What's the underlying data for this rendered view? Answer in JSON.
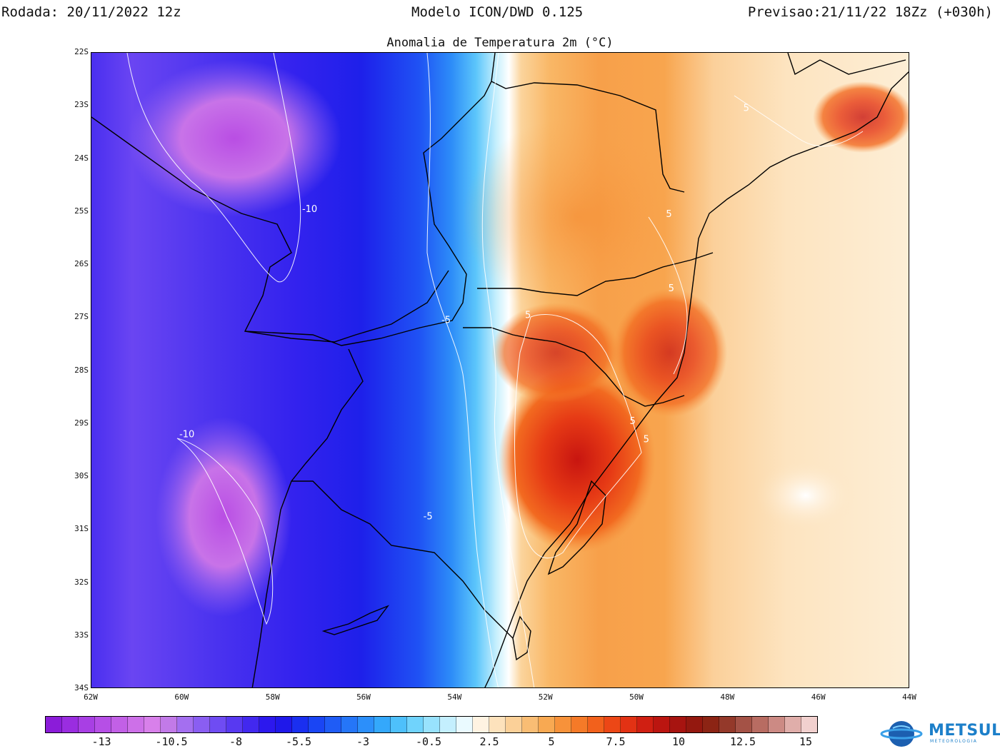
{
  "header": {
    "run": "Rodada: 20/11/2022 12z",
    "model": "Modelo ICON/DWD 0.125",
    "forecast": "Previsao:21/11/22 18Zz (+030h)"
  },
  "map": {
    "title": "Anomalia de Temperatura 2m (°C)",
    "lat_labels": [
      "22S",
      "23S",
      "24S",
      "25S",
      "26S",
      "27S",
      "28S",
      "29S",
      "30S",
      "31S",
      "32S",
      "33S",
      "34S"
    ],
    "lon_labels": [
      "62W",
      "60W",
      "58W",
      "56W",
      "54W",
      "52W",
      "50W",
      "48W",
      "46W",
      "44W"
    ],
    "contour_labels": [
      {
        "text": "-10",
        "lon": -57.2,
        "lat": -25.0
      },
      {
        "text": "-10",
        "lon": -59.9,
        "lat": -29.25
      },
      {
        "text": "-5",
        "lon": -54.2,
        "lat": -27.1
      },
      {
        "text": "-5",
        "lon": -54.6,
        "lat": -30.8
      },
      {
        "text": "5",
        "lon": -52.4,
        "lat": -27.0
      },
      {
        "text": "5",
        "lon": -49.3,
        "lat": -25.1
      },
      {
        "text": "5",
        "lon": -49.25,
        "lat": -26.5
      },
      {
        "text": "5",
        "lon": -50.1,
        "lat": -29.0
      },
      {
        "text": "5",
        "lon": -49.8,
        "lat": -29.35
      },
      {
        "text": "5",
        "lon": -47.6,
        "lat": -23.1
      }
    ]
  },
  "colorbar": {
    "colors": [
      "#8b1cd9",
      "#9a2de0",
      "#a83fe4",
      "#b64fe6",
      "#c260e6",
      "#cd70e8",
      "#d880ea",
      "#c27ae8",
      "#a46ff0",
      "#8a5ef2",
      "#6f4cf3",
      "#5839f1",
      "#4228ef",
      "#2c18ee",
      "#1f18ea",
      "#1a2ff0",
      "#1a45f4",
      "#1f5cf6",
      "#2576f8",
      "#2c8ffa",
      "#34a8fb",
      "#4ec0fb",
      "#70d3fc",
      "#98e2fd",
      "#c4effe",
      "#eafaff",
      "#fff3e2",
      "#fde2bc",
      "#fbd098",
      "#f9bd74",
      "#f8a952",
      "#f7923a",
      "#f57a28",
      "#f2611c",
      "#ec4716",
      "#e23214",
      "#d01f12",
      "#bb1510",
      "#a71410",
      "#94180f",
      "#8c2414",
      "#94392a",
      "#a45246",
      "#b86c62",
      "#cc8a84",
      "#e0aeaa",
      "#f1d0ce"
    ],
    "tick_labels": [
      "-13",
      "-10.5",
      "-8",
      "-5.5",
      "-3",
      "-0.5",
      "2.5",
      "5",
      "7.5",
      "10",
      "12.5",
      "15"
    ]
  },
  "logo": {
    "name": "METSUL",
    "subtitle": "METEOROLOGIA",
    "icon": "globe-icon"
  }
}
